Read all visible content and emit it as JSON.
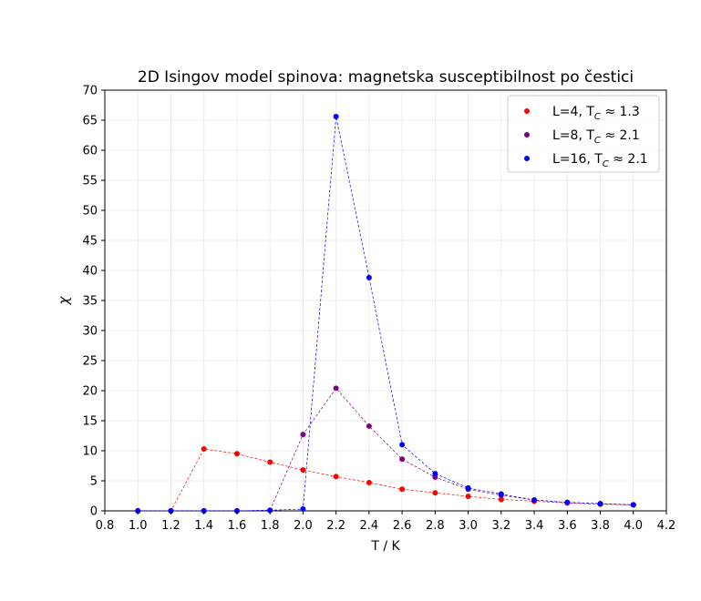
{
  "chart_data": {
    "type": "scatter",
    "title": "2D Isingov model spinova: magnetska susceptibilnost po čestici",
    "xlabel": "T / K",
    "ylabel": "χ",
    "xlim": [
      0.8,
      4.2
    ],
    "ylim": [
      0,
      70
    ],
    "xticks": [
      "0.8",
      "1.0",
      "1.2",
      "1.4",
      "1.6",
      "1.8",
      "2.0",
      "2.2",
      "2.4",
      "2.6",
      "2.8",
      "3.0",
      "3.2",
      "3.4",
      "3.6",
      "3.8",
      "4.0",
      "4.2"
    ],
    "yticks": [
      "0",
      "5",
      "10",
      "15",
      "20",
      "25",
      "30",
      "35",
      "40",
      "45",
      "50",
      "55",
      "60",
      "65",
      "70"
    ],
    "grid": true,
    "legend_position": "top-right",
    "x": [
      1.0,
      1.2,
      1.4,
      1.6,
      1.8,
      2.0,
      2.2,
      2.4,
      2.6,
      2.8,
      3.0,
      3.2,
      3.4,
      3.6,
      3.8,
      4.0
    ],
    "series": [
      {
        "name": "L=4",
        "tc_label": "≈ 1.3",
        "color": "#ff0000",
        "values": [
          0.0,
          0.0,
          10.3,
          9.5,
          8.1,
          6.8,
          5.7,
          4.7,
          3.6,
          3.0,
          2.4,
          1.9,
          1.6,
          1.3,
          1.1,
          1.0
        ]
      },
      {
        "name": "L=8",
        "tc_label": "≈ 2.1",
        "color": "#800080",
        "values": [
          0.0,
          0.0,
          0.0,
          0.0,
          0.1,
          12.7,
          20.4,
          14.1,
          8.6,
          5.6,
          3.6,
          2.6,
          1.8,
          1.4,
          1.2,
          1.0
        ]
      },
      {
        "name": "L=16",
        "tc_label": "≈ 2.1",
        "color": "#0000ff",
        "values": [
          0.0,
          0.0,
          0.0,
          0.0,
          0.1,
          0.3,
          65.6,
          38.8,
          11.0,
          6.2,
          3.8,
          2.8,
          1.8,
          1.4,
          1.2,
          1.0
        ]
      }
    ]
  }
}
